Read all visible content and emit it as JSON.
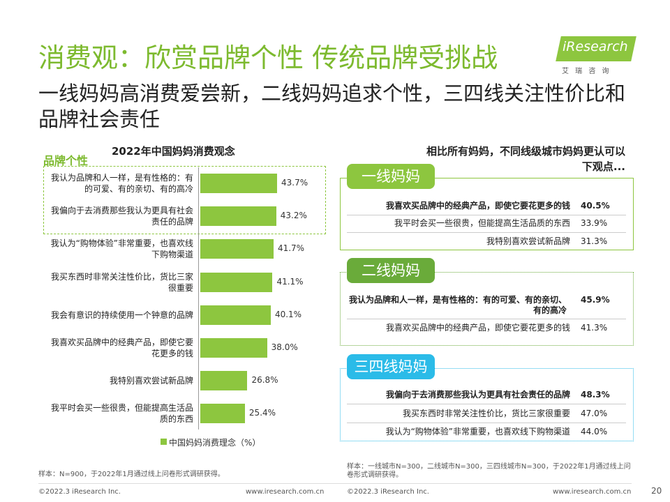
{
  "header": {
    "title": "消费观：欣赏品牌个性 传统品牌受挑战",
    "subtitle": "一线妈妈高消费爱尝新，二线妈妈追求个性，三四线关注性价比和品牌社会责任",
    "logo": "iResearch",
    "logo_sub": "艾 瑞 咨 询"
  },
  "chart_data": {
    "type": "bar",
    "orientation": "horizontal",
    "title": "2022年中国妈妈消费观念",
    "annotation": "品牌个性",
    "categories": [
      "我认为品牌和人一样，是有性格的：有的可爱、有的亲切、有的高冷",
      "我偏向于去消费那些我认为更具有社会责任的品牌",
      "我认为“购物体验”非常重要，也喜欢线下购物渠道",
      "我买东西时非常关注性价比，货比三家很重要",
      "我会有意识的持续使用一个钟意的品牌",
      "我喜欢买品牌中的经典产品，即使它要花更多的钱",
      "我特别喜欢尝试新品牌",
      "我平时会买一些很贵，但能提高生活品质的东西"
    ],
    "series": [
      {
        "name": "中国妈妈消费理念（%）",
        "color": "#8dc63f",
        "values": [
          43.7,
          43.2,
          41.7,
          41.1,
          40.1,
          38.0,
          26.8,
          25.4
        ],
        "value_labels": [
          "43.7%",
          "43.2%",
          "41.7%",
          "41.1%",
          "40.1%",
          "38.0%",
          "26.8%",
          "25.4%"
        ]
      }
    ],
    "note": "样本：N=900，于2022年1月通过线上问卷形式调研获得。"
  },
  "comparison": {
    "title": "相比所有妈妈，不同线级城市妈妈更认可以下观点...",
    "groups": [
      {
        "title": "一线妈妈",
        "color": "#8dc63f",
        "rows": [
          [
            "我喜欢买品牌中的经典产品，即使它要花更多的钱",
            "40.5%"
          ],
          [
            "我平时会买一些很贵，但能提高生活品质的东西",
            "33.9%"
          ],
          [
            "我特别喜欢尝试新品牌",
            "31.3%"
          ]
        ]
      },
      {
        "title": "二线妈妈",
        "color": "#6aab3a",
        "rows": [
          [
            "我认为品牌和人一样，是有性格的：有的可爱、有的亲切、有的高冷",
            "45.9%"
          ],
          [
            "我喜欢买品牌中的经典产品，即使它要花更多的钱",
            "41.3%"
          ]
        ]
      },
      {
        "title": "三四线妈妈",
        "color": "#2bbbe8",
        "rows": [
          [
            "我偏向于去消费那些我认为更具有社会责任的品牌",
            "48.3%"
          ],
          [
            "我买东西时非常关注性价比，货比三家很重要",
            "47.0%"
          ],
          [
            "我认为“购物体验”非常重要，也喜欢线下购物渠道",
            "44.0%"
          ]
        ]
      }
    ],
    "note": "样本：一线城市N=300，二线城市N=300，三四线城市N=300，于2022年1月通过线上问卷形式调研获得。"
  },
  "footer": {
    "copyright_left": "©2022.3 iResearch Inc.",
    "url_left": "www.iresearch.com.cn",
    "copyright_right": "©2022.3 iResearch Inc.",
    "url_right": "www.iresearch.com.cn",
    "page": "20"
  }
}
